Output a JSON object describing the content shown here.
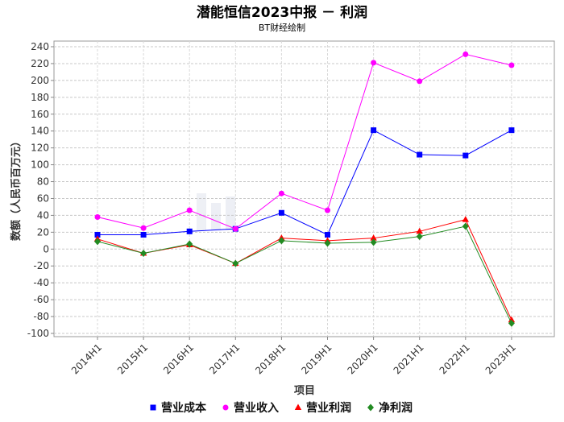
{
  "chart_data": {
    "type": "line",
    "title": "潜能恒信2023中报 － 利润",
    "subtitle": "BT财经绘制",
    "xlabel": "项目",
    "ylabel": "数额（人民币百万元）",
    "ylim": [
      -100,
      240
    ],
    "yticks": [
      -100,
      -80,
      -60,
      -40,
      -20,
      0,
      20,
      40,
      60,
      80,
      100,
      120,
      140,
      160,
      180,
      200,
      220,
      240
    ],
    "categories": [
      "2014H1",
      "2015H1",
      "2016H1",
      "2017H1",
      "2018H1",
      "2019H1",
      "2020H1",
      "2021H1",
      "2022H1",
      "2023H1"
    ],
    "grid": true,
    "legend_position": "bottom",
    "series": [
      {
        "name": "营业成本",
        "color": "#0000ff",
        "marker": "square",
        "values": [
          17,
          17,
          21,
          24,
          43,
          17,
          141,
          112,
          111,
          141
        ]
      },
      {
        "name": "营业收入",
        "color": "#ff00ff",
        "marker": "circle",
        "values": [
          38,
          25,
          46,
          24,
          66,
          46,
          221,
          199,
          231,
          218
        ]
      },
      {
        "name": "营业利润",
        "color": "#ff0000",
        "marker": "triangle",
        "values": [
          12,
          -5,
          5,
          -17,
          13,
          10,
          13,
          21,
          35,
          -84
        ]
      },
      {
        "name": "净利润",
        "color": "#228b22",
        "marker": "diamond",
        "values": [
          9,
          -5,
          6,
          -17,
          10,
          7,
          8,
          15,
          27,
          -88
        ]
      }
    ]
  }
}
